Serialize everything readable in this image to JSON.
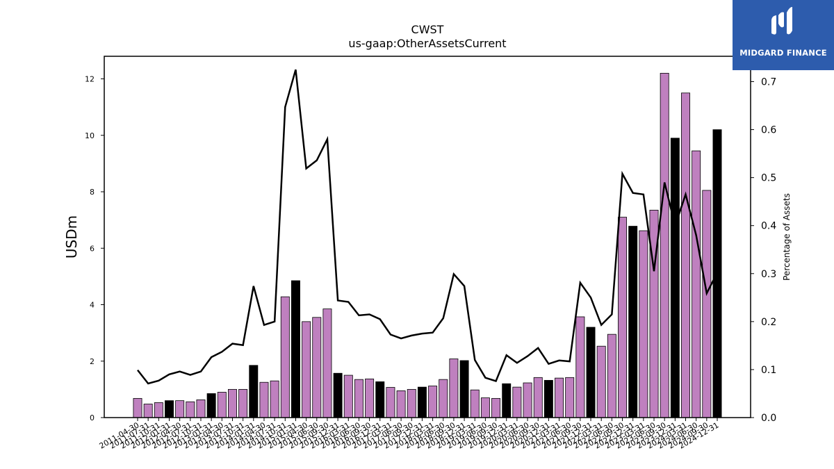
{
  "chart_data": {
    "type": "bar",
    "title": "CWST",
    "subtitle": "us-gaap:OtherAssetsCurrent",
    "ylabel": "USDm",
    "y2label": "Percentage of Assets",
    "ylim": [
      0,
      12.8
    ],
    "y2lim": [
      0,
      0.7528
    ],
    "yticks": [
      0,
      2,
      4,
      6,
      8,
      10,
      12
    ],
    "y2ticks": [
      "0.0",
      "0.1",
      "0.2",
      "0.3",
      "0.4",
      "0.5",
      "0.6",
      "0.7"
    ],
    "categories": [
      "2011-04-30",
      "2011-07-31",
      "2011-10-31",
      "2012-01-31",
      "2012-04-30",
      "2012-07-31",
      "2012-10-31",
      "2013-01-31",
      "2013-04-30",
      "2013-07-31",
      "2013-10-31",
      "2014-01-31",
      "2014-04-30",
      "2014-07-31",
      "2014-10-31",
      "2015-01-31",
      "2015-04-30",
      "2015-06-30",
      "2015-09-30",
      "2015-12-31",
      "2016-03-31",
      "2016-06-30",
      "2016-09-30",
      "2016-12-31",
      "2017-03-31",
      "2017-06-30",
      "2017-09-30",
      "2017-12-31",
      "2018-03-31",
      "2018-06-30",
      "2018-09-30",
      "2018-12-31",
      "2019-03-31",
      "2019-06-30",
      "2019-09-30",
      "2019-12-31",
      "2020-03-31",
      "2020-06-30",
      "2020-09-30",
      "2020-12-31",
      "2021-03-31",
      "2021-06-30",
      "2021-09-30",
      "2021-12-31",
      "2022-03-31",
      "2022-06-30",
      "2022-09-30",
      "2022-12-31",
      "2023-03-31",
      "2023-06-30",
      "2023-09-30",
      "2023-12-31",
      "2024-03-31",
      "2024-06-30",
      "2024-09-30",
      "2024-12-31"
    ],
    "series": [
      {
        "kind": "bar",
        "values": [
          0.68,
          0.48,
          0.53,
          0.6,
          0.6,
          0.56,
          0.63,
          0.85,
          0.9,
          1.0,
          1.0,
          1.85,
          1.25,
          1.3,
          4.28,
          4.85,
          3.4,
          3.55,
          3.85,
          1.57,
          1.5,
          1.35,
          1.37,
          1.27,
          1.07,
          0.95,
          1.0,
          1.08,
          1.12,
          1.35,
          2.08,
          2.02,
          0.98,
          0.7,
          0.68,
          1.2,
          1.08,
          1.23,
          1.42,
          1.32,
          1.4,
          1.42,
          3.57,
          3.2,
          2.53,
          2.95,
          7.1,
          6.78,
          6.62,
          7.35,
          12.2,
          9.9,
          11.5,
          9.45,
          8.05,
          10.2
        ],
        "fiscal_year_end": [
          false,
          false,
          false,
          true,
          false,
          false,
          false,
          true,
          false,
          false,
          false,
          true,
          false,
          false,
          false,
          true,
          false,
          false,
          false,
          true,
          false,
          false,
          false,
          true,
          false,
          false,
          false,
          true,
          false,
          false,
          false,
          true,
          false,
          false,
          false,
          true,
          false,
          false,
          false,
          true,
          false,
          false,
          false,
          true,
          false,
          false,
          false,
          true,
          false,
          false,
          false,
          true,
          false,
          false,
          false,
          true
        ]
      },
      {
        "kind": "line",
        "axis": "right",
        "values": [
          0.099,
          0.071,
          0.077,
          0.09,
          0.096,
          0.089,
          0.096,
          0.126,
          0.137,
          0.154,
          0.151,
          0.274,
          0.193,
          0.2,
          0.647,
          0.725,
          0.519,
          0.536,
          0.58,
          0.244,
          0.241,
          0.213,
          0.215,
          0.205,
          0.173,
          0.165,
          0.171,
          0.175,
          0.177,
          0.207,
          0.299,
          0.274,
          0.12,
          0.083,
          0.076,
          0.13,
          0.114,
          0.128,
          0.145,
          0.112,
          0.119,
          0.117,
          0.281,
          0.25,
          0.193,
          0.215,
          0.508,
          0.468,
          0.465,
          0.305,
          0.49,
          0.4,
          0.465,
          0.38,
          0.259,
          0.302
        ]
      }
    ],
    "colors": {
      "bar": "#bf80bf",
      "bar_fye": "#000000",
      "bar_edge": "#000000",
      "line": "#000000"
    }
  },
  "logo": {
    "text": "MIDGARD FINANCE",
    "color": "#2d5cad"
  }
}
